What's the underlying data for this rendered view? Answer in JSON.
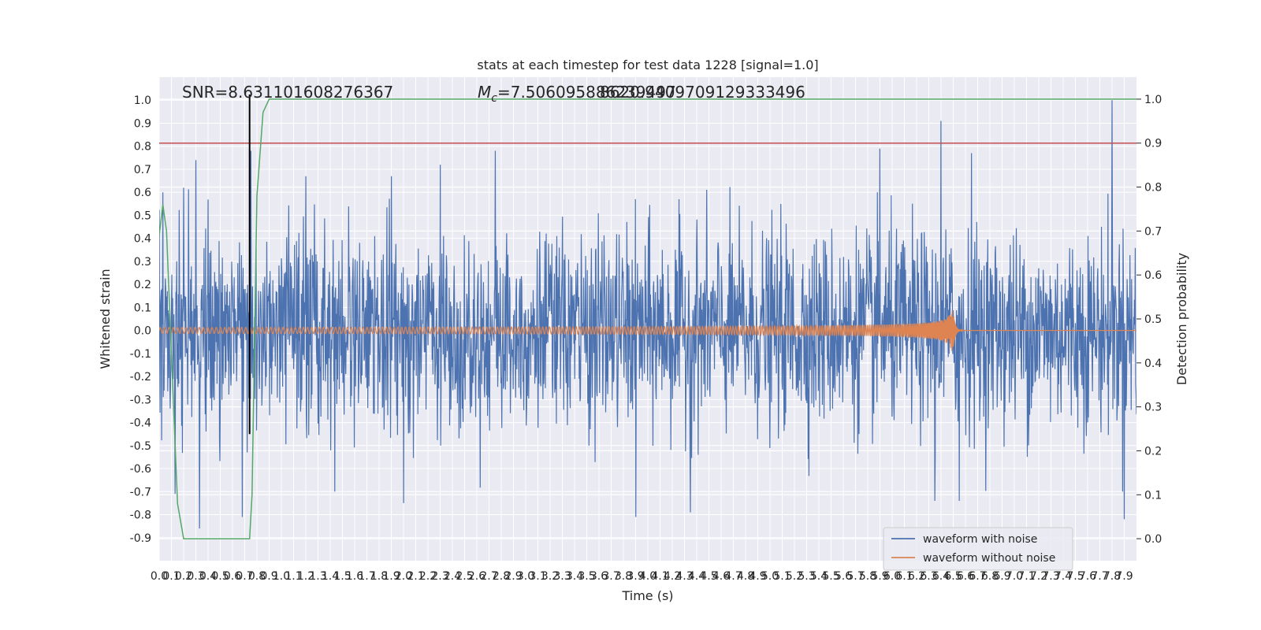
{
  "chart_data": {
    "type": "line",
    "title": "stats at each timestep for test data 1228 [signal=1.0]",
    "xlabel": "Time (s)",
    "ylabel": "Whitened strain",
    "y2label": "Detection probability",
    "xlim": [
      0,
      8
    ],
    "ylim": [
      -1,
      1.1
    ],
    "y2lim": [
      -0.05,
      1.05
    ],
    "x_ticks": [
      "0.0",
      "0.1",
      "0.2",
      "0.3",
      "0.4",
      "0.5",
      "0.6",
      "0.7",
      "0.8",
      "0.9",
      "1.0",
      "1.1",
      "1.2",
      "1.3",
      "1.4",
      "1.5",
      "1.6",
      "1.7",
      "1.8",
      "1.9",
      "2.0",
      "2.1",
      "2.2",
      "2.3",
      "2.4",
      "2.5",
      "2.6",
      "2.7",
      "2.8",
      "2.9",
      "3.0",
      "3.1",
      "3.2",
      "3.3",
      "3.4",
      "3.5",
      "3.6",
      "3.7",
      "3.8",
      "3.9",
      "4.0",
      "4.1",
      "4.2",
      "4.3",
      "4.4",
      "4.5",
      "4.6",
      "4.7",
      "4.8",
      "4.9",
      "5.0",
      "5.1",
      "5.2",
      "5.3",
      "5.4",
      "5.5",
      "5.6",
      "5.7",
      "5.8",
      "5.9",
      "6.0",
      "6.1",
      "6.2",
      "6.3",
      "6.4",
      "6.5",
      "6.6",
      "6.7",
      "6.8",
      "6.9",
      "7.0",
      "7.1",
      "7.2",
      "7.3",
      "7.4",
      "7.5",
      "7.6",
      "7.7",
      "7.8",
      "7.9"
    ],
    "y_ticks": [
      "1.0",
      "0.9",
      "0.8",
      "0.7",
      "0.6",
      "0.5",
      "0.4",
      "0.3",
      "0.2",
      "0.1",
      "0.0",
      "-0.1",
      "-0.2",
      "-0.3",
      "-0.4",
      "-0.5",
      "-0.6",
      "-0.7",
      "-0.8",
      "-0.9"
    ],
    "y2_ticks": [
      "1.0",
      "0.9",
      "0.8",
      "0.7",
      "0.6",
      "0.5",
      "0.4",
      "0.3",
      "0.2",
      "0.1",
      "0.0"
    ],
    "grid": true,
    "legend_position": "lower-right",
    "annotations": {
      "snr": "SNR=8.631101608276367",
      "mc": "Mc=7.506095886239497",
      "mc_prefix": "M",
      "mc_sub": "c",
      "mc_value": "=7.506095886239497",
      "mc_overlap": "8620.9409709129333496"
    },
    "series": [
      {
        "name": "waveform with noise",
        "color": "#4c72b0",
        "noise_std": 0.21,
        "peak_times": [
          0.03,
          0.2,
          0.3,
          0.75,
          1.2,
          1.9,
          2.3,
          2.75,
          5.9,
          6.4,
          6.65,
          7.8
        ],
        "peak_values": [
          0.6,
          0.62,
          0.74,
          0.78,
          0.67,
          0.67,
          0.72,
          0.78,
          0.79,
          0.91,
          0.77,
          1.0
        ],
        "trough_times": [
          0.13,
          0.33,
          0.68,
          2.0,
          3.9,
          4.35,
          6.35,
          6.55,
          7.9
        ],
        "trough_values": [
          -0.71,
          -0.86,
          -0.81,
          -0.75,
          -0.81,
          -0.79,
          -0.74,
          -0.74,
          -0.82
        ]
      },
      {
        "name": "waveform without noise",
        "color": "#dd8452",
        "merger_time": 6.5,
        "peak_amplitude": 0.27,
        "base_amplitude": 0.013,
        "freq_start": 28
      }
    ],
    "detection": {
      "name": "detection probability",
      "color": "#55a868",
      "x": [
        0.0,
        0.03,
        0.06,
        0.1,
        0.15,
        0.2,
        0.25,
        0.3,
        0.4,
        0.5,
        0.6,
        0.7,
        0.74,
        0.76,
        0.8,
        0.85,
        0.9,
        1.0,
        2.0,
        4.0,
        6.0,
        8.0
      ],
      "y": [
        0.69,
        0.76,
        0.7,
        0.42,
        0.08,
        0.0,
        0.0,
        0.0,
        0.0,
        0.0,
        0.0,
        0.0,
        0.0,
        0.1,
        0.78,
        0.97,
        1.0,
        1.0,
        1.0,
        1.0,
        1.0,
        1.0
      ]
    },
    "threshold": {
      "value": 0.9,
      "color": "#c44e52"
    },
    "detection_marker": {
      "time": 0.74,
      "color": "#000000"
    }
  }
}
